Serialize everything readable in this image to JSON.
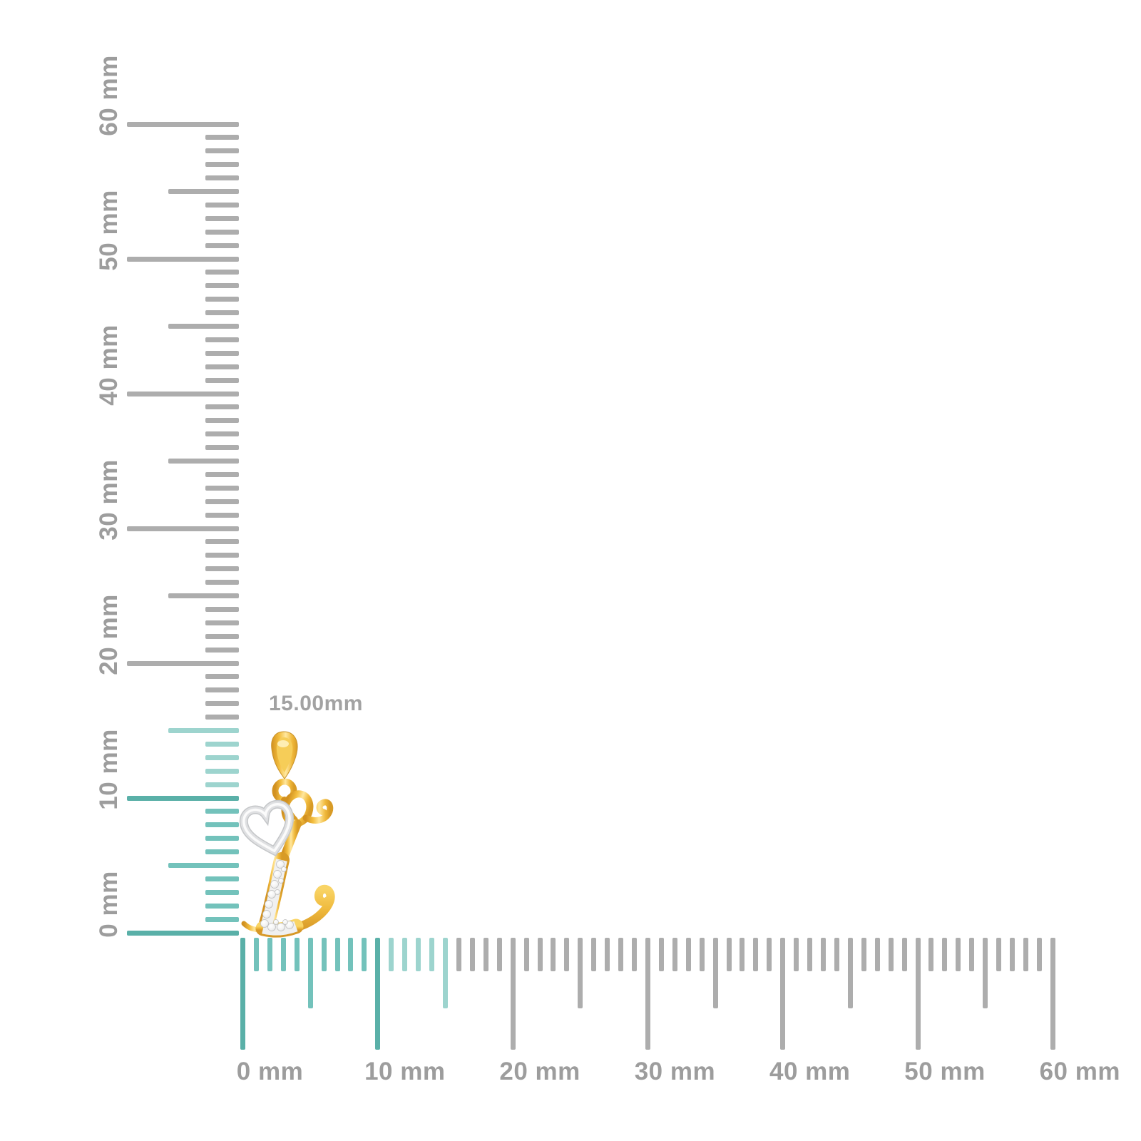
{
  "dimension_label": {
    "text": "15.00mm"
  },
  "pendant": {
    "alt": "Gold cursive letter L initial pendant with white-gold open heart outline and diamond pave lower stem, shown for scale"
  },
  "rulers": {
    "unit": "mm",
    "vertical": {
      "min_mm": 0,
      "max_mm": 60,
      "highlight_to_mm": 15,
      "labels": [
        {
          "mm": 0,
          "text": "0 mm"
        },
        {
          "mm": 10,
          "text": "10 mm"
        },
        {
          "mm": 20,
          "text": "20 mm"
        },
        {
          "mm": 30,
          "text": "30 mm"
        },
        {
          "mm": 40,
          "text": "40 mm"
        },
        {
          "mm": 50,
          "text": "50 mm"
        },
        {
          "mm": 60,
          "text": "60 mm"
        }
      ]
    },
    "horizontal": {
      "min_mm": 0,
      "max_mm": 60,
      "highlight_to_mm": 15,
      "labels": [
        {
          "mm": 0,
          "text": "0 mm"
        },
        {
          "mm": 10,
          "text": "10 mm"
        },
        {
          "mm": 20,
          "text": "20 mm"
        },
        {
          "mm": 30,
          "text": "30 mm"
        },
        {
          "mm": 40,
          "text": "40 mm"
        },
        {
          "mm": 50,
          "text": "50 mm"
        },
        {
          "mm": 60,
          "text": "60 mm"
        }
      ]
    }
  },
  "colors": {
    "background": "#FFFFFF",
    "teal": "#73C2BB",
    "teal_dark": "#5AB0A8",
    "teal_light": "#9DD4CE",
    "tick_gray": "#ADADAD",
    "label_gray": "#9D9D9D",
    "dimension_label_gray": "#A2A2A2",
    "gold": "#F2BE45",
    "gold_deep": "#D6992B",
    "gold_light": "#FFE9A6",
    "white_gold": "#DFE0E2",
    "diamond": "#F1F1F1"
  }
}
